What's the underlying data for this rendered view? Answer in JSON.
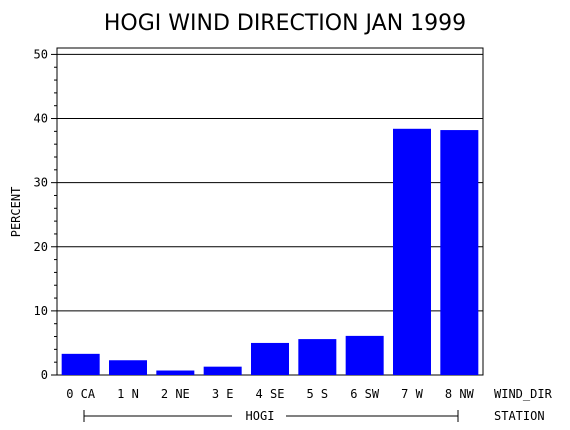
{
  "chart_data": {
    "type": "bar",
    "title": "HOGI WIND DIRECTION JAN 1999",
    "ylabel": "PERCENT",
    "xlabel": "WIND_DIR",
    "group_axis_label": "STATION",
    "group_label": "HOGI",
    "categories": [
      "0 CA",
      "1 N",
      "2 NE",
      "3 E",
      "4 SE",
      "5 S",
      "6 SW",
      "7 W",
      "8 NW"
    ],
    "values": [
      3.3,
      2.3,
      0.7,
      1.3,
      5.0,
      5.6,
      6.1,
      38.4,
      38.2
    ],
    "ylim": [
      0,
      51
    ],
    "yticks": [
      "0",
      "10",
      "20",
      "30",
      "40",
      "50"
    ],
    "grid": true,
    "bar_color": "#0000ff"
  }
}
